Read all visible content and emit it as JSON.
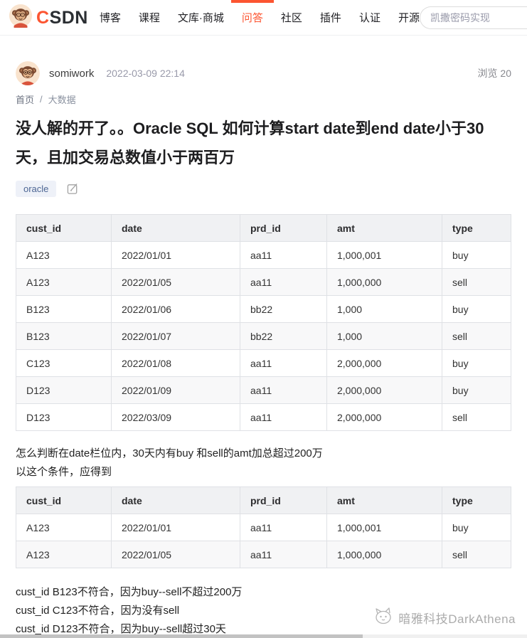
{
  "navbar": {
    "brand_c": "C",
    "brand_rest": "SDN",
    "items": [
      {
        "label": "博客",
        "active": false
      },
      {
        "label": "课程",
        "active": false
      },
      {
        "label": "文库·商城",
        "active": false
      },
      {
        "label": "问答",
        "active": true
      },
      {
        "label": "社区",
        "active": false
      },
      {
        "label": "插件",
        "active": false
      },
      {
        "label": "认证",
        "active": false
      },
      {
        "label": "开源",
        "active": false
      }
    ],
    "search_value": "凯撒密码实现"
  },
  "post": {
    "author": "somiwork",
    "timestamp": "2022-03-09 22:14",
    "views": "浏览 20",
    "breadcrumb_home": "首页",
    "breadcrumb_separator": "/",
    "breadcrumb_category": "大数据",
    "title": "没人解的开了。。Oracle SQL 如何计算start date到end date小于30天，且加交易总数值小于两百万",
    "tag": "oracle"
  },
  "question_table": {
    "headers": [
      "cust_id",
      "date",
      "prd_id",
      "amt",
      "type"
    ],
    "rows": [
      [
        "A123",
        "2022/01/01",
        "aa11",
        "1,000,001",
        "buy"
      ],
      [
        "A123",
        "2022/01/05",
        "aa11",
        "1,000,000",
        "sell"
      ],
      [
        "B123",
        "2022/01/06",
        "bb22",
        "1,000",
        "buy"
      ],
      [
        "B123",
        "2022/01/07",
        "bb22",
        "1,000",
        "sell"
      ],
      [
        "C123",
        "2022/01/08",
        "aa11",
        "2,000,000",
        "buy"
      ],
      [
        "D123",
        "2022/01/09",
        "aa11",
        "2,000,000",
        "buy"
      ],
      [
        "D123",
        "2022/03/09",
        "aa11",
        "2,000,000",
        "sell"
      ]
    ]
  },
  "body_text": {
    "line1": "怎么判断在date栏位内，30天内有buy 和sell的amt加总超过200万",
    "line2": "以这个条件，应得到"
  },
  "expected_table": {
    "headers": [
      "cust_id",
      "date",
      "prd_id",
      "amt",
      "type"
    ],
    "rows": [
      [
        "A123",
        "2022/01/01",
        "aa11",
        "1,000,001",
        "buy"
      ],
      [
        "A123",
        "2022/01/05",
        "aa11",
        "1,000,000",
        "sell"
      ]
    ]
  },
  "conclusions": [
    "cust_id B123不符合，因为buy--sell不超过200万",
    "cust_id C123不符合，因为没有sell",
    "cust_id D123不符合，因为buy--sell超过30天"
  ],
  "watermark": "暗雅科技DarkAthena",
  "colors": {
    "accent": "#fc5531",
    "tag_bg": "#eef1f8",
    "tag_text": "#4d6694",
    "table_header_bg": "#f0f1f3",
    "table_alt_row_bg": "#f8f8f9"
  }
}
